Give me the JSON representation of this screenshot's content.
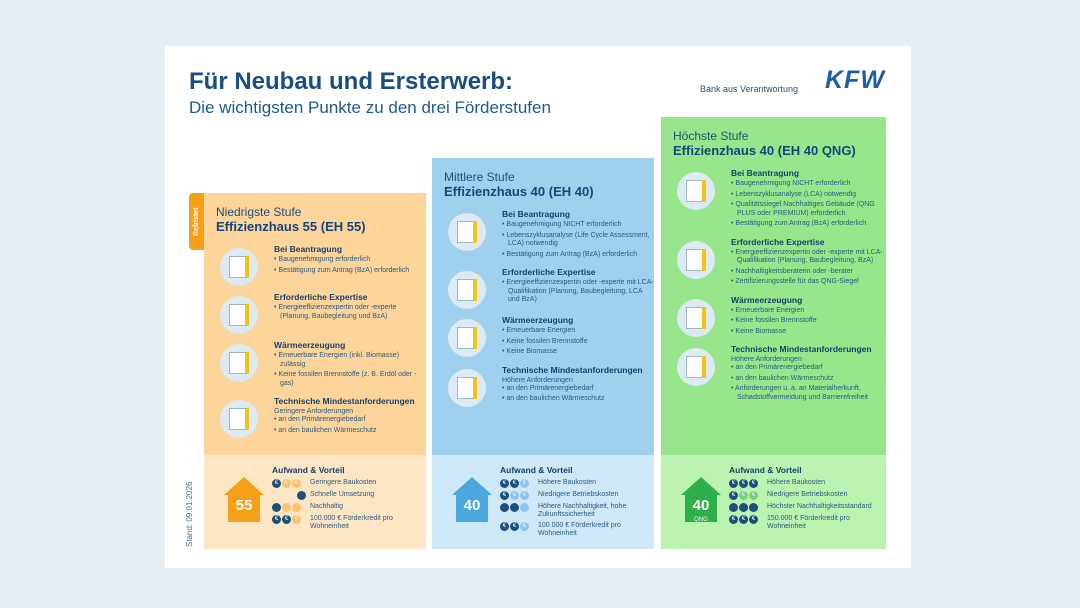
{
  "header": {
    "title": "Für Neubau und Ersterwerb:",
    "subtitle": "Die wichtigsten Punkte zu den drei Förderstufen",
    "tagline": "Bank aus Verantwortung",
    "logo": "KFW"
  },
  "badge": "Befristet",
  "stand": "Stand: 09.01.2026",
  "colors": {
    "eh55_upper": "#fdd49a",
    "eh55_lower": "#fde6c4",
    "eh55_accent": "#f6a01a",
    "eh40_upper": "#9fd0ee",
    "eh40_lower": "#cfe8f7",
    "eh40_accent": "#4aa8df",
    "qng_upper": "#97e68b",
    "qng_lower": "#bdf3b1",
    "qng_accent": "#2fae4c"
  },
  "columns": [
    {
      "level": "Niedrigste Stufe",
      "name": "Effizienzhaus 55 (EH 55)",
      "house": "55",
      "house_sub": "",
      "sections": [
        {
          "icon": "document-icon",
          "heading": "Bei Beantragung",
          "bullets": [
            "Baugenehmigung erforderlich",
            "Bestätigung zum Antrag (BzA) erforderlich"
          ]
        },
        {
          "icon": "consultation-icon",
          "heading": "Erforderliche Expertise",
          "bullets": [
            "Energieeffizienzexpertin oder -experte (Planung, Baubegleitung und BzA)"
          ]
        },
        {
          "icon": "heating-icon",
          "heading": "Wärmeerzeugung",
          "bullets": [
            "Erneuerbare Energien (inkl. Biomasse) zulässig",
            "Keine fossilen Brennstoffe (z. B. Erdöl oder -gas)"
          ]
        },
        {
          "icon": "insulation-icon",
          "heading": "Technische Mindestanforderungen",
          "intro": "Geringere Anforderungen",
          "bullets": [
            "an den Primärenergiebedarf",
            "an den baulichen Wärmeschutz"
          ]
        }
      ],
      "benefits_heading": "Aufwand & Vorteil",
      "benefits": [
        {
          "icon": "euro-icon",
          "filled": 1,
          "total": 3,
          "text": "Geringere Baukosten"
        },
        {
          "icon": "stopwatch-icon",
          "filled": 1,
          "total": 1,
          "text": "Schnelle Umsetzung"
        },
        {
          "icon": "sustainability-icon",
          "filled": 1,
          "total": 3,
          "text": "Nachhaltig"
        },
        {
          "icon": "euro-icon",
          "filled": 2,
          "total": 3,
          "text": "100.000 € Förderkredit pro Wohneinheit"
        }
      ]
    },
    {
      "level": "Mittlere Stufe",
      "name": "Effizienzhaus 40 (EH 40)",
      "house": "40",
      "house_sub": "",
      "sections": [
        {
          "icon": "document-icon",
          "heading": "Bei Beantragung",
          "bullets": [
            "Baugenehmigung NICHT erforderlich",
            "Lebenszyklusanalyse (Life Cycle Assessment, LCA) notwendig",
            "Bestätigung zum Antrag (BzA) erforderlich"
          ]
        },
        {
          "icon": "consultation-icon",
          "heading": "Erforderliche Expertise",
          "bullets": [
            "Energieeffizienzexpertin oder -experte mit LCA-Qualifikation (Planung, Baubegleitung, LCA und BzA)"
          ]
        },
        {
          "icon": "heating-icon",
          "heading": "Wärmeerzeugung",
          "bullets": [
            "Erneuerbare Energien",
            "Keine fossilen Brennstoffe",
            "Keine Biomasse"
          ]
        },
        {
          "icon": "insulation-icon",
          "heading": "Technische Mindestanforderungen",
          "intro": "Höhere Anforderungen",
          "bullets": [
            "an den Primärenergiebedarf",
            "an den baulichen Wärmeschutz"
          ]
        }
      ],
      "benefits_heading": "Aufwand & Vorteil",
      "benefits": [
        {
          "icon": "euro-icon",
          "filled": 2,
          "total": 3,
          "text": "Höhere Baukosten"
        },
        {
          "icon": "euro-icon",
          "filled": 1,
          "total": 3,
          "text": "Niedrigere Betriebskosten"
        },
        {
          "icon": "sustainability-icon",
          "filled": 2,
          "total": 3,
          "text": "Höhere Nachhaltigkeit, hohe Zukunftssicherheit"
        },
        {
          "icon": "euro-icon",
          "filled": 2,
          "total": 3,
          "text": "100.000 € Förderkredit pro Wohneinheit"
        }
      ]
    },
    {
      "level": "Höchste Stufe",
      "name": "Effizienzhaus 40 (EH 40 QNG)",
      "house": "40",
      "house_sub": "QNG",
      "sections": [
        {
          "icon": "document-icon",
          "heading": "Bei Beantragung",
          "bullets": [
            "Baugenehmigung NICHT erforderlich",
            "Lebenszyklusanalyse (LCA) notwendig",
            "Qualitätssiegel Nachhaltiges Gebäude (QNG PLUS oder PREMIUM) erforderlich",
            "Bestätigung zum Antrag (BzA) erforderlich"
          ]
        },
        {
          "icon": "consultation-icon",
          "heading": "Erforderliche Expertise",
          "bullets": [
            "Energieeffizienzexpertin oder -experte mit LCA-Qualifikation (Planung, Baubegleitung, BzA)",
            "Nachhaltigkeitsberaterin oder -berater",
            "Zertifizierungsstelle für das QNG-Siegel"
          ]
        },
        {
          "icon": "heating-icon",
          "heading": "Wärmeerzeugung",
          "bullets": [
            "Erneuerbare Energien",
            "Keine fossilen Brennstoffe",
            "Keine Biomasse"
          ]
        },
        {
          "icon": "insulation-icon",
          "heading": "Technische Mindestanforderungen",
          "intro": "Höhere Anforderungen",
          "bullets": [
            "an den Primärenergiebedarf",
            "an den baulichen Wärmeschutz",
            "Anforderungen u. a. an Materialherkunft, Schadstoffvermeidung und Barrierefreiheit"
          ]
        }
      ],
      "benefits_heading": "Aufwand & Vorteil",
      "benefits": [
        {
          "icon": "euro-icon",
          "filled": 3,
          "total": 3,
          "text": "Höhere Baukosten"
        },
        {
          "icon": "euro-icon",
          "filled": 1,
          "total": 3,
          "text": "Niedrigere Betriebskosten"
        },
        {
          "icon": "sustainability-icon",
          "filled": 3,
          "total": 3,
          "text": "Höchster Nachhaltigkeitsstandard"
        },
        {
          "icon": "euro-icon",
          "filled": 3,
          "total": 3,
          "text": "150.000 € Förderkredit pro Wohneinheit"
        }
      ]
    }
  ]
}
